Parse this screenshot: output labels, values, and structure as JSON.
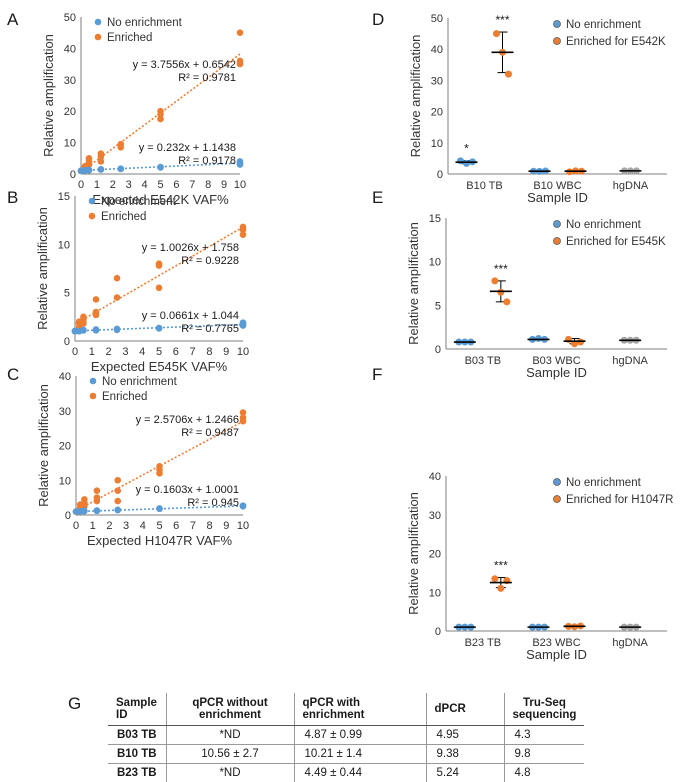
{
  "panel_labels": [
    "A",
    "B",
    "C",
    "D",
    "E",
    "F",
    "G"
  ],
  "chart_data": [
    {
      "panel": "A",
      "type": "scatter",
      "xlabel": "Expected E542K VAF%",
      "ylabel": "Relative amplification",
      "xlim": [
        0,
        10
      ],
      "ylim": [
        0,
        50
      ],
      "xticks": [
        0,
        1,
        2,
        3,
        4,
        5,
        6,
        7,
        8,
        9,
        10
      ],
      "yticks": [
        0,
        10,
        20,
        30,
        40,
        50
      ],
      "legend": [
        "No enrichment",
        "Enriched"
      ],
      "legend_position": "top-left",
      "series": [
        {
          "name": "No enrichment",
          "color": "#5B9BD5",
          "points": [
            [
              0,
              1
            ],
            [
              0,
              1
            ],
            [
              0.25,
              1.1
            ],
            [
              0.25,
              1.2
            ],
            [
              0.5,
              1.2
            ],
            [
              0.5,
              1.3
            ],
            [
              1.25,
              1.4
            ],
            [
              1.25,
              1.5
            ],
            [
              2.5,
              1.6
            ],
            [
              2.5,
              1.7
            ],
            [
              5,
              2.1
            ],
            [
              5,
              2.2
            ],
            [
              10,
              3
            ],
            [
              10,
              3.5
            ],
            [
              10,
              4
            ]
          ],
          "trendline": {
            "slope": 0.232,
            "intercept": 1.1438
          }
        },
        {
          "name": "Enriched",
          "color": "#ED7D31",
          "points": [
            [
              0,
              1
            ],
            [
              0.25,
              2
            ],
            [
              0.25,
              2.5
            ],
            [
              0.5,
              3
            ],
            [
              0.5,
              3.5
            ],
            [
              0.5,
              4
            ],
            [
              0.5,
              5
            ],
            [
              1.25,
              4
            ],
            [
              1.25,
              5.5
            ],
            [
              1.25,
              6.5
            ],
            [
              2.5,
              8.5
            ],
            [
              2.5,
              9.5
            ],
            [
              5,
              17.5
            ],
            [
              5,
              19
            ],
            [
              5,
              20
            ],
            [
              10,
              35
            ],
            [
              10,
              36
            ],
            [
              10,
              45
            ]
          ],
          "trendline": {
            "slope": 3.7556,
            "intercept": 0.6542
          }
        }
      ],
      "annotations": [
        "y = 3.7556x + 0.6542",
        "R² = 0.9781",
        "y = 0.232x + 1.1438",
        "R² = 0.9178"
      ]
    },
    {
      "panel": "B",
      "type": "scatter",
      "xlabel": "Expected E545K VAF%",
      "ylabel": "Relative amplification",
      "xlim": [
        0,
        10
      ],
      "ylim": [
        0,
        15
      ],
      "xticks": [
        0,
        1,
        2,
        3,
        4,
        5,
        6,
        7,
        8,
        9,
        10
      ],
      "yticks": [
        0,
        5,
        10,
        15
      ],
      "legend": [
        "No enrichment",
        "Enriched"
      ],
      "legend_position": "top-left",
      "series": [
        {
          "name": "No enrichment",
          "color": "#5B9BD5",
          "points": [
            [
              0,
              1
            ],
            [
              0,
              1.05
            ],
            [
              0.25,
              1
            ],
            [
              0.5,
              1.1
            ],
            [
              0.5,
              1.15
            ],
            [
              1.25,
              1.1
            ],
            [
              1.25,
              1.2
            ],
            [
              2.5,
              1.15
            ],
            [
              2.5,
              1.25
            ],
            [
              5,
              1.3
            ],
            [
              5,
              1.35
            ],
            [
              10,
              1.6
            ],
            [
              10,
              1.8
            ],
            [
              10,
              1.9
            ]
          ],
          "trendline": {
            "slope": 0.0661,
            "intercept": 1.044
          }
        },
        {
          "name": "Enriched",
          "color": "#ED7D31",
          "points": [
            [
              0,
              1
            ],
            [
              0.25,
              1.5
            ],
            [
              0.25,
              2
            ],
            [
              0.5,
              1.8
            ],
            [
              0.5,
              2.2
            ],
            [
              0.5,
              2.5
            ],
            [
              1.25,
              2.7
            ],
            [
              1.25,
              3
            ],
            [
              1.25,
              4.3
            ],
            [
              2.5,
              4.5
            ],
            [
              2.5,
              6.5
            ],
            [
              5,
              5.5
            ],
            [
              5,
              7.8
            ],
            [
              5,
              8
            ],
            [
              10,
              11
            ],
            [
              10,
              11.5
            ],
            [
              10,
              11.8
            ]
          ],
          "trendline": {
            "slope": 1.0026,
            "intercept": 1.758
          }
        }
      ],
      "annotations": [
        "y = 1.0026x + 1.758",
        "R² = 0.9228",
        "y = 0.0661x + 1.044",
        "R² = 0.7765"
      ]
    },
    {
      "panel": "C",
      "type": "scatter",
      "xlabel": "Expected H1047R VAF%",
      "ylabel": "Relative amplification",
      "xlim": [
        0,
        10
      ],
      "ylim": [
        0,
        40
      ],
      "xticks": [
        0,
        1,
        2,
        3,
        4,
        5,
        6,
        7,
        8,
        9,
        10
      ],
      "yticks": [
        0,
        10,
        20,
        30,
        40
      ],
      "legend": [
        "No enrichment",
        "Enriched"
      ],
      "legend_position": "top-left",
      "series": [
        {
          "name": "No enrichment",
          "color": "#5B9BD5",
          "points": [
            [
              0,
              1
            ],
            [
              0.25,
              1
            ],
            [
              0.25,
              1.1
            ],
            [
              0.5,
              1.1
            ],
            [
              0.5,
              1.2
            ],
            [
              1.25,
              1.2
            ],
            [
              1.25,
              1.3
            ],
            [
              2.5,
              1.4
            ],
            [
              2.5,
              1.5
            ],
            [
              5,
              1.8
            ],
            [
              5,
              1.9
            ],
            [
              10,
              2.5
            ],
            [
              10,
              2.7
            ]
          ],
          "trendline": {
            "slope": 0.1603,
            "intercept": 1.0001
          }
        },
        {
          "name": "Enriched",
          "color": "#ED7D31",
          "points": [
            [
              0,
              1
            ],
            [
              0.25,
              2
            ],
            [
              0.25,
              3
            ],
            [
              0.5,
              2.5
            ],
            [
              0.5,
              3.5
            ],
            [
              0.5,
              4.5
            ],
            [
              1.25,
              4
            ],
            [
              1.25,
              5
            ],
            [
              1.25,
              7
            ],
            [
              2.5,
              4
            ],
            [
              2.5,
              7
            ],
            [
              2.5,
              10
            ],
            [
              5,
              12
            ],
            [
              5,
              13
            ],
            [
              5,
              14
            ],
            [
              10,
              27
            ],
            [
              10,
              28
            ],
            [
              10,
              29.5
            ]
          ],
          "trendline": {
            "slope": 2.5706,
            "intercept": 1.2466
          }
        }
      ],
      "annotations": [
        "y = 2.5706x + 1.2466",
        "R² = 0.9487",
        "y = 0.1603x + 1.0001",
        "R² = 0.945"
      ]
    },
    {
      "panel": "D",
      "type": "scatter",
      "xlabel": "Sample ID",
      "ylabel": "Relative amplification",
      "categories": [
        "B10 TB",
        "B10 WBC",
        "hgDNA"
      ],
      "ylim": [
        0,
        50
      ],
      "yticks": [
        0,
        10,
        20,
        30,
        40,
        50
      ],
      "legend": [
        "No enrichment",
        "Enriched for E542K"
      ],
      "legend_position": "top-right",
      "series": [
        {
          "name": "No enrichment",
          "color": "#5B9BD5",
          "groups": [
            {
              "category": "B10 TB",
              "values": [
                4.2,
                3.4,
                3.9
              ],
              "mean": 3.8,
              "error": 0.5
            },
            {
              "category": "B10 WBC",
              "values": [
                0.9,
                0.85,
                0.95
              ],
              "mean": 0.9,
              "error": 0.05
            }
          ]
        },
        {
          "name": "Enriched for E542K",
          "color": "#ED7D31",
          "groups": [
            {
              "category": "B10 TB",
              "values": [
                45,
                39,
                32
              ],
              "mean": 39,
              "error": 6.5
            },
            {
              "category": "B10 WBC",
              "values": [
                0.7,
                1.0,
                0.9
              ],
              "mean": 0.9,
              "error": 0.15
            }
          ]
        },
        {
          "name": "hgDNA",
          "color": "#A5A5A5",
          "groups": [
            {
              "category": "hgDNA",
              "values": [
                1,
                1,
                1
              ],
              "mean": 1,
              "error": 0
            }
          ]
        }
      ],
      "significance": [
        {
          "category": "B10 TB",
          "series": "No enrichment",
          "label": "*"
        },
        {
          "category": "B10 TB",
          "series": "Enriched for E542K",
          "label": "***"
        }
      ]
    },
    {
      "panel": "E",
      "type": "scatter",
      "xlabel": "Sample ID",
      "ylabel": "Relative amplification",
      "categories": [
        "B03 TB",
        "B03 WBC",
        "hgDNA"
      ],
      "ylim": [
        0,
        15
      ],
      "yticks": [
        0,
        5,
        10,
        15
      ],
      "legend": [
        "No enrichment",
        "Enriched for E545K"
      ],
      "legend_position": "top-right",
      "series": [
        {
          "name": "No enrichment",
          "color": "#5B9BD5",
          "groups": [
            {
              "category": "B03 TB",
              "values": [
                0.8,
                0.8,
                0.8
              ],
              "mean": 0.8,
              "error": 0
            },
            {
              "category": "B03 WBC",
              "values": [
                1.1,
                1.2,
                1.1
              ],
              "mean": 1.1,
              "error": 0.1
            }
          ]
        },
        {
          "name": "Enriched for E545K",
          "color": "#ED7D31",
          "groups": [
            {
              "category": "B03 TB",
              "values": [
                7.8,
                6.5,
                5.4
              ],
              "mean": 6.6,
              "error": 1.2
            },
            {
              "category": "B03 WBC",
              "values": [
                1.1,
                0.6,
                0.8
              ],
              "mean": 0.9,
              "error": 0.3
            }
          ]
        },
        {
          "name": "hgDNA",
          "color": "#A5A5A5",
          "groups": [
            {
              "category": "hgDNA",
              "values": [
                1,
                1,
                1
              ],
              "mean": 1,
              "error": 0
            }
          ]
        }
      ],
      "significance": [
        {
          "category": "B03 TB",
          "series": "Enriched for E545K",
          "label": "***"
        }
      ]
    },
    {
      "panel": "F",
      "type": "scatter",
      "xlabel": "Sample ID",
      "ylabel": "Relative amplification",
      "categories": [
        "B23 TB",
        "B23 WBC",
        "hgDNA"
      ],
      "ylim": [
        0,
        40
      ],
      "yticks": [
        0,
        10,
        20,
        30,
        40
      ],
      "legend": [
        "No enrichment",
        "Enriched for H1047R"
      ],
      "legend_position": "top-right",
      "series": [
        {
          "name": "No enrichment",
          "color": "#5B9BD5",
          "groups": [
            {
              "category": "B23 TB",
              "values": [
                1,
                1,
                1
              ],
              "mean": 1,
              "error": 0
            },
            {
              "category": "B23 WBC",
              "values": [
                1,
                1,
                1
              ],
              "mean": 1,
              "error": 0
            }
          ]
        },
        {
          "name": "Enriched for H1047R",
          "color": "#ED7D31",
          "groups": [
            {
              "category": "B23 TB",
              "values": [
                13.5,
                11,
                13
              ],
              "mean": 12.5,
              "error": 1.3
            },
            {
              "category": "B23 WBC",
              "values": [
                1.2,
                1.1,
                1.3
              ],
              "mean": 1.2,
              "error": 0.1
            }
          ]
        },
        {
          "name": "hgDNA",
          "color": "#A5A5A5",
          "groups": [
            {
              "category": "hgDNA",
              "values": [
                1,
                1,
                1
              ],
              "mean": 1,
              "error": 0
            }
          ]
        }
      ],
      "significance": [
        {
          "category": "B23 TB",
          "series": "Enriched for H1047R",
          "label": "***"
        }
      ]
    },
    {
      "panel": "G",
      "type": "table",
      "columns": [
        "Sample ID",
        "qPCR without enrichment",
        "qPCR with enrichment",
        "dPCR",
        "Tru-Seq sequencing"
      ],
      "rows": [
        [
          "B03 TB",
          "*ND",
          "4.87 ± 0.99",
          "4.95",
          "4.3"
        ],
        [
          "B10 TB",
          "10.56 ± 2.7",
          "10.21 ± 1.4",
          "9.38",
          "9.8"
        ],
        [
          "B23 TB",
          "*ND",
          "4.49 ± 0.44",
          "5.24",
          "4.8"
        ]
      ]
    }
  ]
}
